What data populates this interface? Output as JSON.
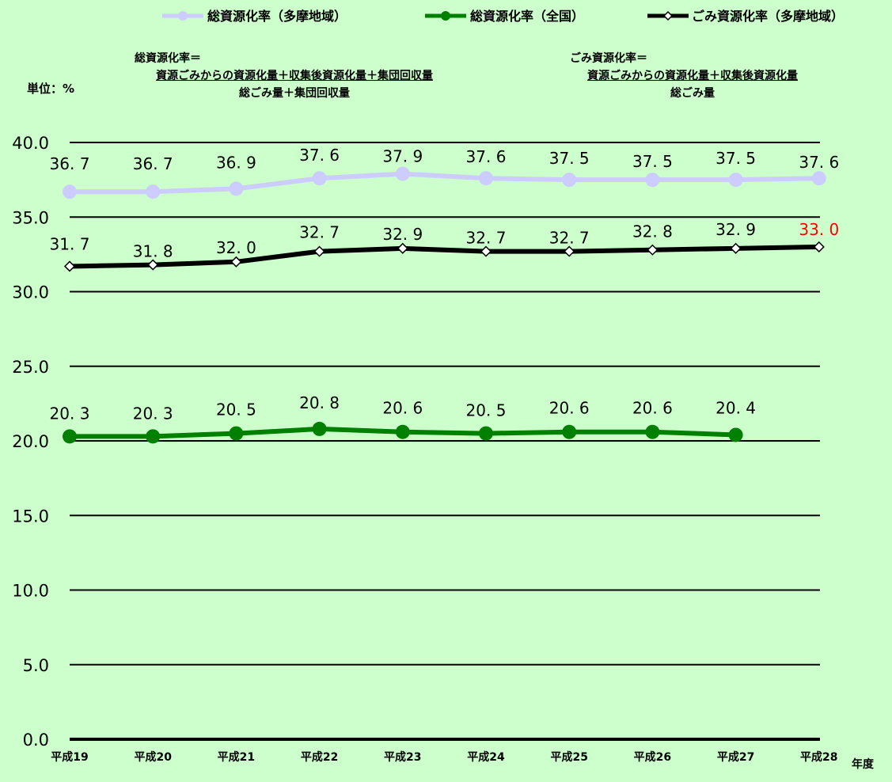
{
  "chart_data": {
    "type": "line",
    "categories": [
      "平成19",
      "平成20",
      "平成21",
      "平成22",
      "平成23",
      "平成24",
      "平成25",
      "平成26",
      "平成27",
      "平成28"
    ],
    "x_unit_label": "年度",
    "y_unit_label": "単位：%",
    "ylim": [
      0,
      40
    ],
    "yticks": [
      "0.0",
      "5.0",
      "10.0",
      "15.0",
      "20.0",
      "25.0",
      "30.0",
      "35.0",
      "40.0"
    ],
    "grid": true,
    "legend_position": "top",
    "series": [
      {
        "name": "総資源化率（多摩地域）",
        "color": "#ccccff",
        "marker": "circle",
        "values": [
          36.7,
          36.7,
          36.9,
          37.6,
          37.9,
          37.6,
          37.5,
          37.5,
          37.5,
          37.6
        ],
        "labels": [
          "36. 7",
          "36. 7",
          "36. 9",
          "37. 6",
          "37. 9",
          "37. 6",
          "37. 5",
          "37. 5",
          "37. 5",
          "37. 6"
        ]
      },
      {
        "name": "総資源化率（全国）",
        "color": "#008000",
        "marker": "circle",
        "values": [
          20.3,
          20.3,
          20.5,
          20.8,
          20.6,
          20.5,
          20.6,
          20.6,
          20.4,
          null
        ],
        "labels": [
          "20. 3",
          "20. 3",
          "20. 5",
          "20. 8",
          "20. 6",
          "20. 5",
          "20. 6",
          "20. 6",
          "20. 4",
          ""
        ]
      },
      {
        "name": "ごみ資源化率（多摩地域）",
        "color": "#000000",
        "marker": "diamond",
        "values": [
          31.7,
          31.8,
          32.0,
          32.7,
          32.9,
          32.7,
          32.7,
          32.8,
          32.9,
          33.0
        ],
        "labels": [
          "31. 7",
          "31. 8",
          "32. 0",
          "32. 7",
          "32. 9",
          "32. 7",
          "32. 7",
          "32. 8",
          "32. 9",
          "33. 0"
        ],
        "highlight_last_color": "#ff0000"
      }
    ],
    "annotations": {
      "formula_total": {
        "title": "総資源化率＝",
        "numerator": "資源ごみからの資源化量＋収集後資源化量＋集団回収量",
        "denominator": "総ごみ量＋集団回収量"
      },
      "formula_garbage": {
        "title": "ごみ資源化率＝",
        "numerator": "資源ごみからの資源化量＋収集後資源化量",
        "denominator": "総ごみ量"
      }
    }
  }
}
